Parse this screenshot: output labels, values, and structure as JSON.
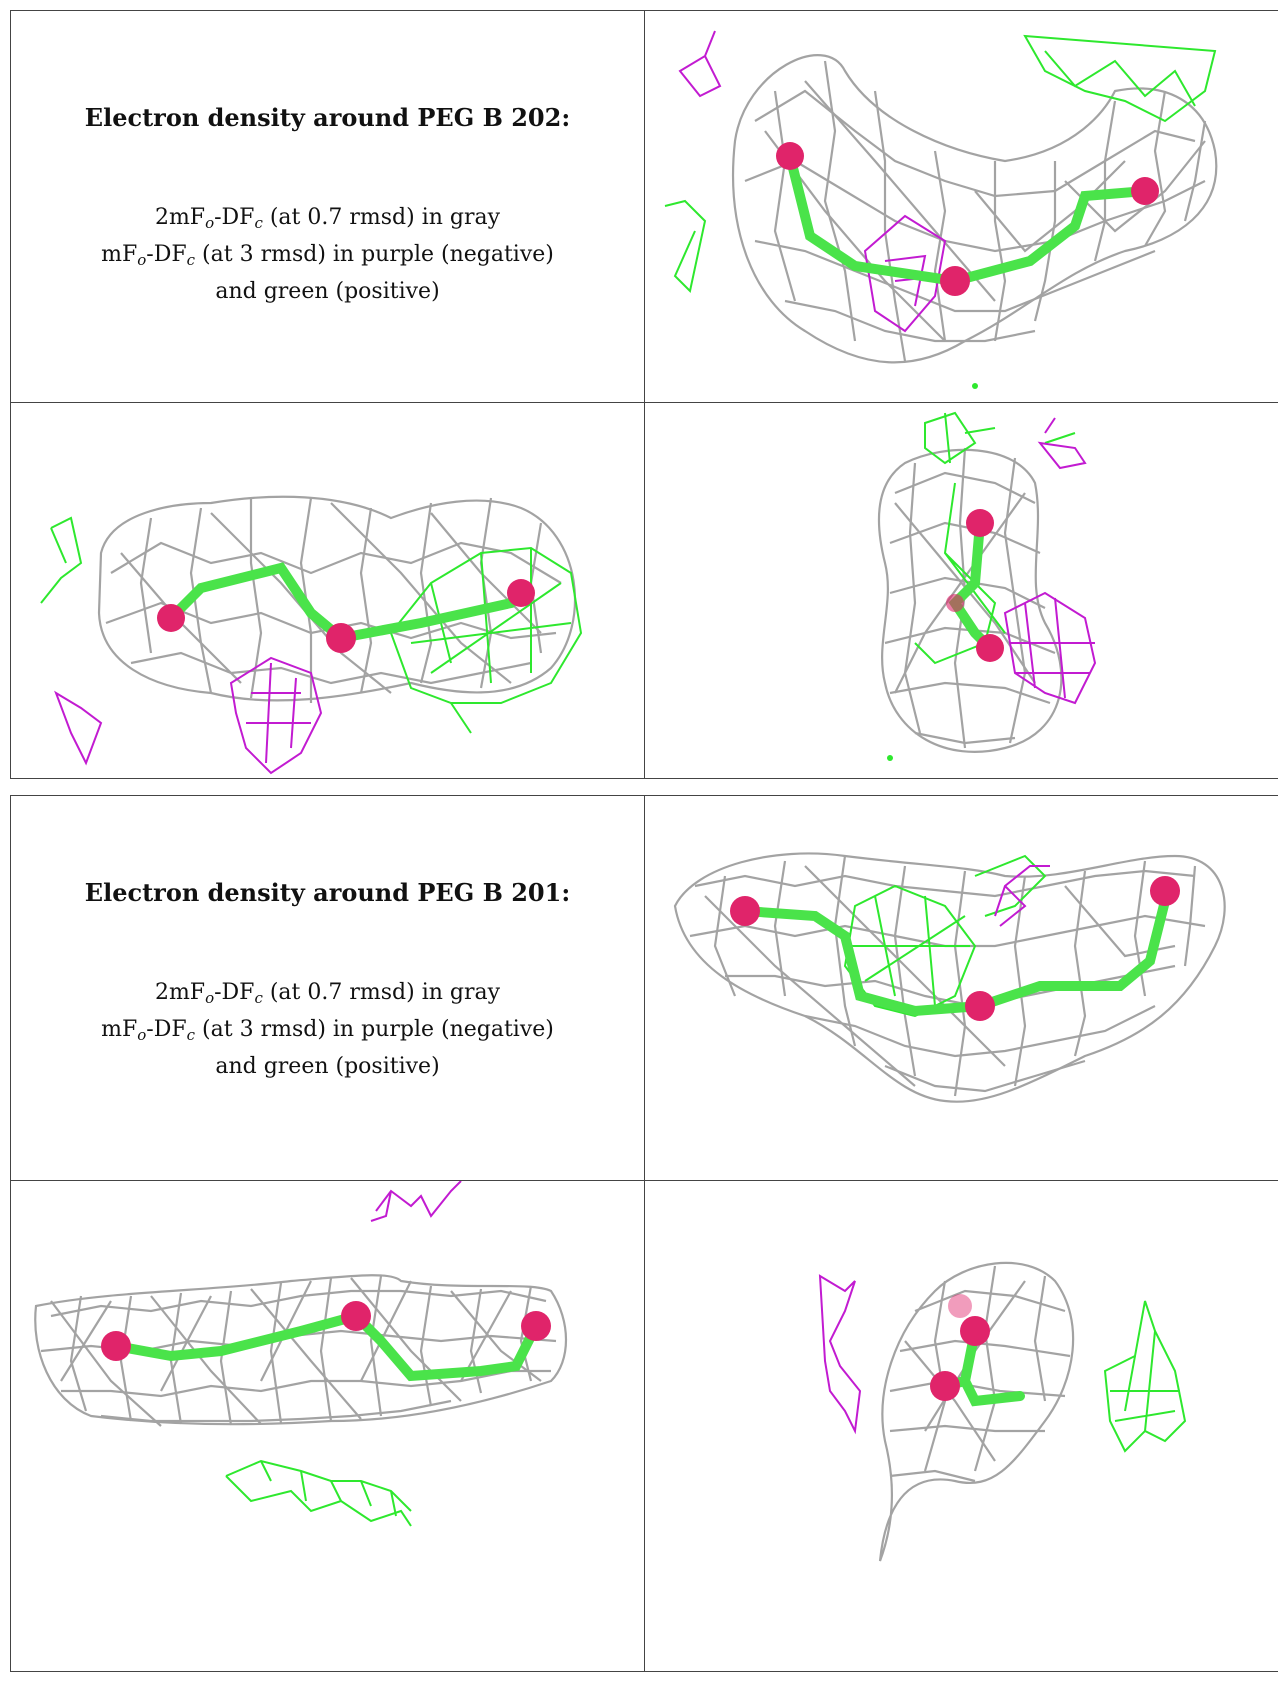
{
  "colors": {
    "mesh_gray": "#9a9a9a",
    "mesh_light": "#c9c9c9",
    "positive_green": "#2ee82e",
    "negative_purple": "#c21bd1",
    "stick_green": "#4ae34a",
    "atom_pink": "#e0246a"
  },
  "panels": [
    {
      "title": "Electron density around PEG B 202:",
      "line1": {
        "base": "2mF",
        "sub1": "o",
        "mid": "-DF",
        "sub2": "c",
        "tail": " (at 0.7 rmsd) in gray"
      },
      "line2": {
        "base": "mF",
        "sub1": "o",
        "mid": "-DF",
        "sub2": "c",
        "tail": " (at 3 rmsd) in purple (negative)"
      },
      "line3": "and green (positive)"
    },
    {
      "title": "Electron density around PEG B 201:",
      "line1": {
        "base": "2mF",
        "sub1": "o",
        "mid": "-DF",
        "sub2": "c",
        "tail": " (at 0.7 rmsd) in gray"
      },
      "line2": {
        "base": "mF",
        "sub1": "o",
        "mid": "-DF",
        "sub2": "c",
        "tail": " (at 3 rmsd) in purple (negative)"
      },
      "line3": "and green (positive)"
    }
  ]
}
